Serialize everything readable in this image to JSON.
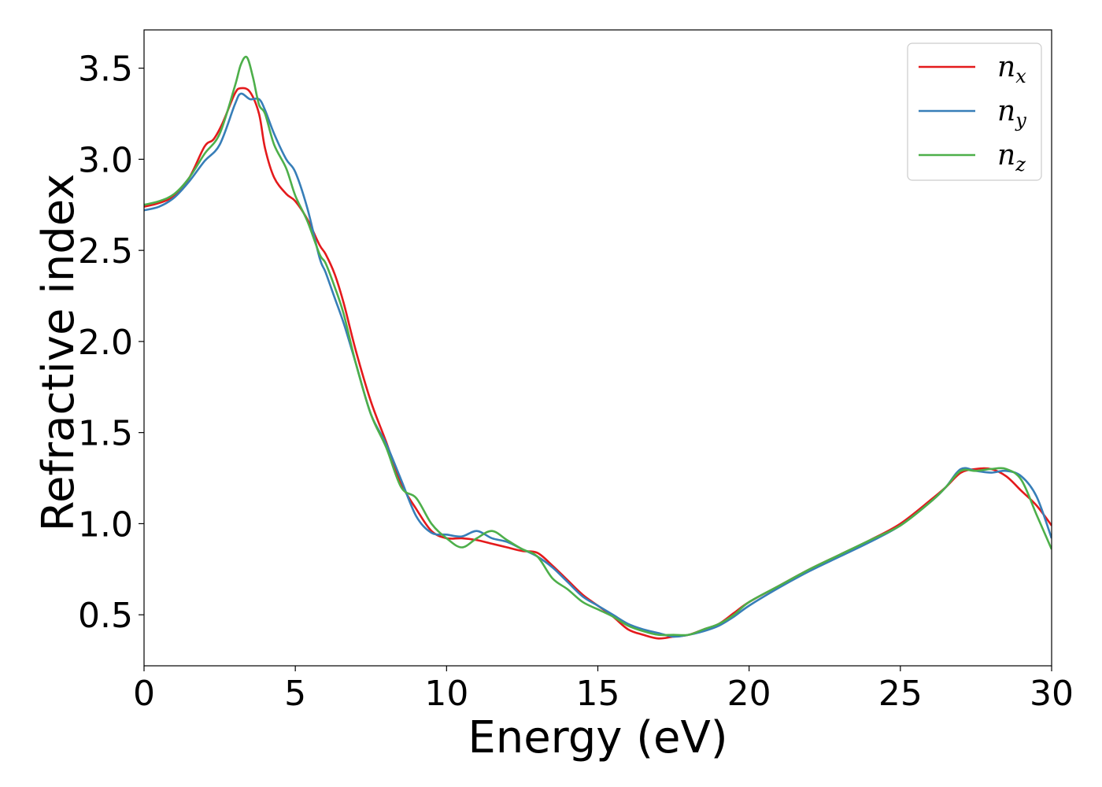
{
  "chart_data": {
    "type": "line",
    "xlabel": "Energy (eV)",
    "ylabel": "Refractive index",
    "xlim": [
      0,
      30
    ],
    "ylim": [
      0.22,
      3.71
    ],
    "xticks": [
      0,
      5,
      10,
      15,
      20,
      25,
      30
    ],
    "xtick_labels": [
      "0",
      "5",
      "10",
      "15",
      "20",
      "25",
      "30"
    ],
    "yticks": [
      0.5,
      1.0,
      1.5,
      2.0,
      2.5,
      3.0,
      3.5
    ],
    "ytick_labels": [
      "0.5",
      "1.0",
      "1.5",
      "2.0",
      "2.5",
      "3.0",
      "3.5"
    ],
    "grid": false,
    "legend_position": "top-right",
    "series": [
      {
        "name": "n_x",
        "label_base": "n",
        "label_sub": "x",
        "color": "#e41a1c",
        "x": [
          0,
          0.5,
          1,
          1.5,
          2,
          2.3,
          2.6,
          3,
          3.2,
          3.5,
          3.8,
          4,
          4.3,
          4.7,
          5,
          5.4,
          5.8,
          6,
          6.3,
          6.6,
          7,
          7.5,
          8,
          8.5,
          9,
          9.5,
          10,
          10.5,
          11,
          11.5,
          12,
          12.5,
          13,
          13.5,
          14,
          14.5,
          15,
          15.5,
          16,
          16.5,
          17,
          17.5,
          18,
          18.5,
          19,
          19.5,
          20,
          21,
          22,
          23,
          24,
          25,
          26,
          26.5,
          27,
          27.5,
          28,
          28.5,
          29,
          29.5,
          30
        ],
        "y": [
          2.74,
          2.76,
          2.8,
          2.9,
          3.07,
          3.11,
          3.2,
          3.36,
          3.39,
          3.37,
          3.25,
          3.06,
          2.9,
          2.81,
          2.77,
          2.67,
          2.53,
          2.48,
          2.37,
          2.21,
          1.95,
          1.67,
          1.45,
          1.22,
          1.08,
          0.96,
          0.92,
          0.92,
          0.91,
          0.89,
          0.87,
          0.85,
          0.84,
          0.77,
          0.69,
          0.61,
          0.55,
          0.49,
          0.42,
          0.39,
          0.37,
          0.38,
          0.39,
          0.42,
          0.45,
          0.51,
          0.57,
          0.66,
          0.75,
          0.83,
          0.91,
          1.0,
          1.13,
          1.2,
          1.28,
          1.3,
          1.3,
          1.26,
          1.18,
          1.1,
          0.99
        ]
      },
      {
        "name": "n_y",
        "label_base": "n",
        "label_sub": "y",
        "color": "#377eb8",
        "x": [
          0,
          0.5,
          1,
          1.5,
          2,
          2.5,
          3,
          3.2,
          3.5,
          3.8,
          4,
          4.3,
          4.7,
          5,
          5.4,
          5.8,
          6,
          6.3,
          6.6,
          7,
          7.5,
          8,
          8.5,
          9,
          9.5,
          10,
          10.5,
          11,
          11.5,
          12,
          12.5,
          13,
          13.5,
          14,
          14.5,
          15,
          15.5,
          16,
          16.5,
          17,
          17.5,
          18,
          18.5,
          19,
          19.5,
          20,
          21,
          22,
          23,
          24,
          25,
          26,
          26.5,
          27,
          27.5,
          28,
          28.5,
          29,
          29.5,
          30
        ],
        "y": [
          2.72,
          2.74,
          2.79,
          2.88,
          2.99,
          3.08,
          3.3,
          3.36,
          3.33,
          3.33,
          3.27,
          3.14,
          3.0,
          2.93,
          2.73,
          2.46,
          2.38,
          2.24,
          2.1,
          1.88,
          1.6,
          1.44,
          1.24,
          1.04,
          0.95,
          0.94,
          0.93,
          0.96,
          0.92,
          0.9,
          0.86,
          0.82,
          0.76,
          0.68,
          0.6,
          0.55,
          0.5,
          0.45,
          0.42,
          0.4,
          0.38,
          0.39,
          0.41,
          0.44,
          0.49,
          0.55,
          0.65,
          0.74,
          0.82,
          0.9,
          0.99,
          1.12,
          1.2,
          1.3,
          1.29,
          1.28,
          1.29,
          1.26,
          1.15,
          0.92
        ]
      },
      {
        "name": "n_z",
        "label_base": "n",
        "label_sub": "z",
        "color": "#4daf4a",
        "x": [
          0,
          0.5,
          1,
          1.5,
          2,
          2.5,
          3,
          3.2,
          3.4,
          3.6,
          3.8,
          4,
          4.3,
          4.7,
          5,
          5.4,
          5.8,
          6,
          6.3,
          6.6,
          7,
          7.5,
          8,
          8.5,
          9,
          9.5,
          10,
          10.5,
          11,
          11.5,
          12,
          12.5,
          13,
          13.5,
          14,
          14.5,
          15,
          15.5,
          16,
          16.5,
          17,
          17.5,
          18,
          18.5,
          19,
          19.5,
          20,
          21,
          22,
          23,
          24,
          25,
          26,
          26.5,
          27,
          27.5,
          28,
          28.5,
          29,
          29.5,
          30
        ],
        "y": [
          2.75,
          2.77,
          2.81,
          2.9,
          3.03,
          3.14,
          3.4,
          3.52,
          3.56,
          3.45,
          3.3,
          3.25,
          3.08,
          2.95,
          2.8,
          2.66,
          2.48,
          2.43,
          2.3,
          2.15,
          1.88,
          1.6,
          1.42,
          1.2,
          1.14,
          1.0,
          0.92,
          0.87,
          0.92,
          0.96,
          0.91,
          0.86,
          0.82,
          0.7,
          0.64,
          0.57,
          0.53,
          0.49,
          0.44,
          0.41,
          0.39,
          0.39,
          0.39,
          0.42,
          0.45,
          0.5,
          0.57,
          0.66,
          0.75,
          0.83,
          0.91,
          0.99,
          1.12,
          1.2,
          1.29,
          1.29,
          1.3,
          1.3,
          1.24,
          1.05,
          0.86
        ]
      }
    ]
  }
}
